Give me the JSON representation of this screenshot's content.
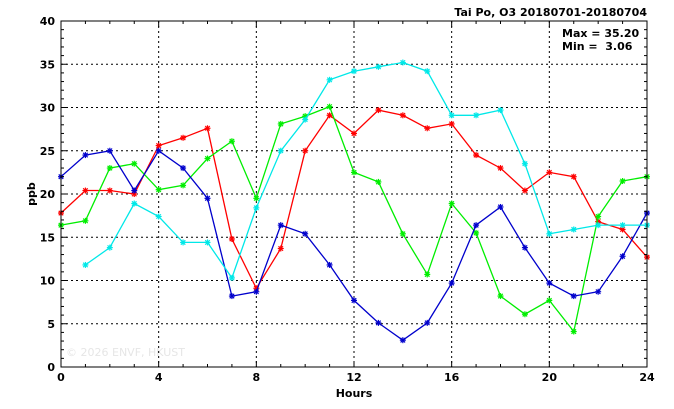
{
  "chart_data": {
    "type": "line",
    "title": "Tai Po, O3 20180701-20180704",
    "xlabel": "Hours",
    "ylabel": "ppb",
    "xlim": [
      0,
      24
    ],
    "ylim": [
      0,
      40
    ],
    "xticks": [
      0,
      4,
      8,
      12,
      16,
      20,
      24
    ],
    "yticks": [
      0,
      5,
      10,
      15,
      20,
      25,
      30,
      35,
      40
    ],
    "grid": true,
    "stats": {
      "max_label": "Max = 35.20",
      "min_label": "Min =  3.06"
    },
    "watermark": "© 2026  ENVF, HKUST",
    "series": [
      {
        "color": "#ff0000",
        "x": [
          0,
          1,
          2,
          3,
          4,
          5,
          6,
          7,
          8,
          9,
          10,
          11,
          12,
          13,
          14,
          15,
          16,
          17,
          18,
          19,
          20,
          21,
          22,
          23,
          24
        ],
        "y": [
          17.8,
          20.4,
          20.4,
          20.0,
          25.6,
          26.5,
          27.6,
          14.8,
          9.1,
          13.7,
          25.0,
          29.1,
          27.0,
          29.7,
          29.1,
          27.6,
          28.1,
          24.5,
          23.0,
          20.4,
          22.5,
          22.0,
          16.8,
          15.9,
          12.7
        ]
      },
      {
        "color": "#00ee00",
        "x": [
          0,
          1,
          2,
          3,
          4,
          5,
          6,
          7,
          8,
          9,
          10,
          11,
          12,
          13,
          14,
          15,
          16,
          17,
          18,
          19,
          20,
          21,
          22,
          23,
          24
        ],
        "y": [
          16.4,
          16.9,
          23.0,
          23.5,
          20.5,
          21.0,
          24.1,
          26.1,
          19.5,
          28.1,
          29.0,
          30.1,
          22.5,
          21.4,
          15.4,
          10.7,
          18.9,
          15.5,
          8.2,
          6.1,
          7.7,
          4.1,
          17.4,
          21.5,
          22.0
        ]
      },
      {
        "color": "#0000cc",
        "x": [
          0,
          1,
          2,
          3,
          4,
          5,
          6,
          7,
          8,
          9,
          10,
          11,
          12,
          13,
          14,
          15,
          16,
          17,
          18,
          19,
          20,
          21,
          22,
          23,
          24
        ],
        "y": [
          22.0,
          24.5,
          25.0,
          20.4,
          25.0,
          23.0,
          19.5,
          8.2,
          8.7,
          16.4,
          15.4,
          11.8,
          7.7,
          5.1,
          3.1,
          5.1,
          9.7,
          16.4,
          18.5,
          13.8,
          9.7,
          8.2,
          8.7,
          12.8,
          17.8
        ]
      },
      {
        "color": "#00e8e8",
        "x": [
          1,
          2,
          3,
          4,
          5,
          6,
          7,
          8,
          9,
          10,
          11,
          12,
          13,
          14,
          15,
          16,
          17,
          18,
          19,
          20,
          21,
          22,
          23,
          24
        ],
        "y": [
          11.8,
          13.8,
          18.9,
          17.4,
          14.4,
          14.4,
          10.3,
          18.4,
          25.0,
          28.6,
          33.2,
          34.2,
          34.7,
          35.2,
          34.2,
          29.1,
          29.1,
          29.7,
          23.5,
          15.4,
          15.9,
          16.4,
          16.4,
          16.4
        ]
      }
    ]
  }
}
